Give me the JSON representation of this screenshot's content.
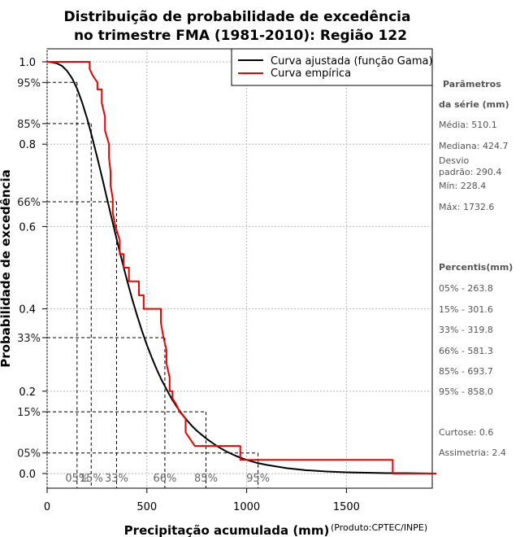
{
  "chart_data": {
    "type": "line",
    "title_line1": "Distribuição de probabilidade de excedência",
    "title_line2": "no trimestre FMA (1981-2010): Região 122",
    "xlabel": "Precipitação acumulada (mm)",
    "ylabel": "Probabilidade de excedência",
    "credit": "(Produto:CPTEC/INPE)",
    "xlim": [
      0,
      1950
    ],
    "ylim": [
      0,
      1.0
    ],
    "x_ticks": [
      0,
      500,
      1000,
      1500
    ],
    "y_ticks": [
      0.0,
      0.2,
      0.4,
      0.6,
      0.8,
      1.0
    ],
    "y_tick_labels": [
      "0.0",
      "0.2",
      "0.4",
      "0.6",
      "0.8",
      "1.0"
    ],
    "y_pct_ticks": [
      0.05,
      0.15,
      0.33,
      0.66,
      0.85,
      0.95
    ],
    "y_pct_labels": [
      "05%",
      "15%",
      "33%",
      "66%",
      "85%",
      "95%"
    ],
    "grid": true,
    "legend_position": "top-right",
    "series": [
      {
        "name": "Curva ajustada (função Gama)",
        "color": "#000000",
        "x": [
          0,
          25,
          50,
          75,
          100,
          125,
          150,
          175,
          200,
          225,
          250,
          275,
          300,
          325,
          350,
          375,
          400,
          425,
          450,
          475,
          500,
          525,
          550,
          575,
          600,
          625,
          650,
          675,
          700,
          725,
          750,
          775,
          800,
          850,
          900,
          950,
          1000,
          1050,
          1100,
          1150,
          1200,
          1300,
          1400,
          1500,
          1600,
          1700,
          1800,
          1950
        ],
        "values": [
          1.0,
          0.999,
          0.996,
          0.99,
          0.978,
          0.96,
          0.935,
          0.902,
          0.863,
          0.818,
          0.77,
          0.72,
          0.668,
          0.617,
          0.566,
          0.517,
          0.47,
          0.426,
          0.385,
          0.347,
          0.312,
          0.281,
          0.252,
          0.226,
          0.203,
          0.181,
          0.162,
          0.145,
          0.13,
          0.116,
          0.104,
          0.094,
          0.084,
          0.067,
          0.053,
          0.042,
          0.033,
          0.026,
          0.021,
          0.017,
          0.013,
          0.008,
          0.005,
          0.003,
          0.002,
          0.001,
          0.001,
          0.0
        ]
      },
      {
        "name": "Curva empírica",
        "color": "#ee0000",
        "x": [
          0,
          213,
          213,
          228,
          252,
          252,
          274,
          274,
          290,
          290,
          310,
          310,
          318,
          318,
          329,
          329,
          342,
          342,
          364,
          364,
          383,
          383,
          410,
          410,
          425,
          425,
          460,
          460,
          484,
          484,
          548,
          548,
          570,
          570,
          582,
          582,
          598,
          598,
          614,
          614,
          628,
          628,
          648,
          648,
          664,
          664,
          694,
          694,
          740,
          740,
          770,
          770,
          968,
          968,
          990,
          990,
          1732,
          1732,
          1950
        ],
        "values": [
          1.0,
          1.0,
          0.983,
          0.967,
          0.95,
          0.933,
          0.933,
          0.9,
          0.867,
          0.833,
          0.8,
          0.767,
          0.733,
          0.7,
          0.667,
          0.633,
          0.6,
          0.6,
          0.567,
          0.533,
          0.533,
          0.5,
          0.5,
          0.467,
          0.467,
          0.467,
          0.467,
          0.433,
          0.433,
          0.4,
          0.4,
          0.4,
          0.4,
          0.367,
          0.333,
          0.333,
          0.3,
          0.267,
          0.233,
          0.2,
          0.2,
          0.183,
          0.167,
          0.167,
          0.15,
          0.15,
          0.133,
          0.1,
          0.067,
          0.067,
          0.067,
          0.067,
          0.067,
          0.033,
          0.033,
          0.033,
          0.033,
          0.0,
          0.0
        ]
      }
    ],
    "percentile_markers": [
      {
        "label": "05%",
        "x": 150,
        "y": 0.95
      },
      {
        "label": "15%",
        "x": 221,
        "y": 0.85
      },
      {
        "label": "33%",
        "x": 348,
        "y": 0.66
      },
      {
        "label": "66%",
        "x": 590,
        "y": 0.33
      },
      {
        "label": "85%",
        "x": 796,
        "y": 0.15
      },
      {
        "label": "95%",
        "x": 1057,
        "y": 0.05
      }
    ]
  },
  "stats_panel": {
    "params_title_1": "Parâmetros",
    "params_title_2": "da série (mm)",
    "media": "Média: 510.1",
    "mediana": "Mediana: 424.7",
    "desvio_1": "Desvio",
    "desvio_2": "padrão: 290.4",
    "min": "Mín: 228.4",
    "max": "Máx: 1732.6",
    "percentis_title": "Percentis(mm)",
    "p05": "05% - 263.8",
    "p15": "15% - 301.6",
    "p33": "33% - 319.8",
    "p66": "66% - 581.3",
    "p85": "85% - 693.7",
    "p95": "95% - 858.0",
    "curtose": "Curtose: 0.6",
    "assimetria": "Assimetria: 2.4"
  }
}
